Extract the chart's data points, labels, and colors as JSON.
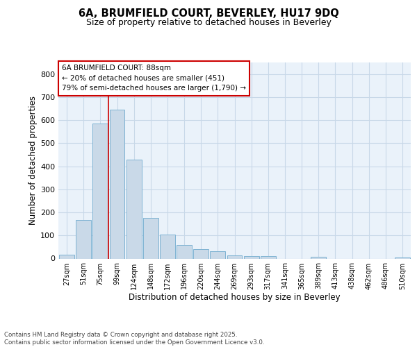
{
  "title_line1": "6A, BRUMFIELD COURT, BEVERLEY, HU17 9DQ",
  "title_line2": "Size of property relative to detached houses in Beverley",
  "xlabel": "Distribution of detached houses by size in Beverley",
  "ylabel": "Number of detached properties",
  "categories": [
    "27sqm",
    "51sqm",
    "75sqm",
    "99sqm",
    "124sqm",
    "148sqm",
    "172sqm",
    "196sqm",
    "220sqm",
    "244sqm",
    "269sqm",
    "293sqm",
    "317sqm",
    "341sqm",
    "365sqm",
    "389sqm",
    "413sqm",
    "438sqm",
    "462sqm",
    "486sqm",
    "510sqm"
  ],
  "values": [
    18,
    168,
    585,
    645,
    430,
    175,
    105,
    58,
    42,
    32,
    15,
    11,
    10,
    0,
    0,
    7,
    0,
    0,
    0,
    0,
    5
  ],
  "bar_color": "#c9d9e8",
  "bar_edge_color": "#7fb3d3",
  "vline_position": 2.5,
  "vline_color": "#cc0000",
  "annotation_text": "6A BRUMFIELD COURT: 88sqm\n← 20% of detached houses are smaller (451)\n79% of semi-detached houses are larger (1,790) →",
  "annotation_box_facecolor": "#ffffff",
  "annotation_box_edgecolor": "#cc0000",
  "grid_color": "#c8d8e8",
  "background_color": "#eaf2fa",
  "ylim": [
    0,
    850
  ],
  "yticks": [
    0,
    100,
    200,
    300,
    400,
    500,
    600,
    700,
    800
  ],
  "footer_line1": "Contains HM Land Registry data © Crown copyright and database right 2025.",
  "footer_line2": "Contains public sector information licensed under the Open Government Licence v3.0."
}
